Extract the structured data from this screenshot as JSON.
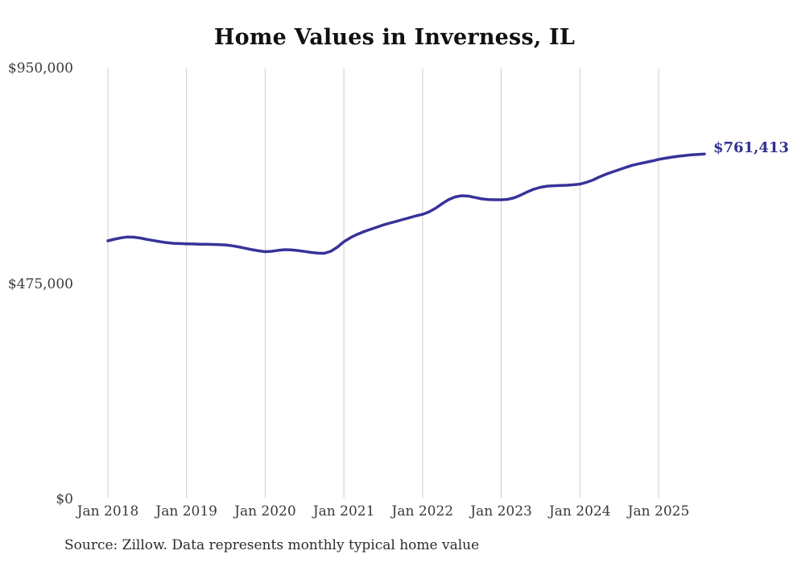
{
  "chart_data": {
    "type": "line",
    "title": "Home Values in Inverness, IL",
    "source_note": "Source: Zillow. Data represents monthly typical home value",
    "end_label": "$761,413",
    "end_value": 761413,
    "line_color": "#373399",
    "end_label_color": "#323090",
    "grid_color": "#cccccc",
    "axis_text_color": "#3a3a3a",
    "background_color": "#ffffff",
    "ylim": [
      0,
      950000
    ],
    "grid": "vertical-only",
    "legend": "none",
    "x_start": "2018-01",
    "x_end": "2025-08",
    "x_interval": "monthly",
    "y_ticks": [
      {
        "label": "$950,000",
        "value": 950000
      },
      {
        "label": "$475,000",
        "value": 475000
      },
      {
        "label": "$0",
        "value": 0
      }
    ],
    "x_ticks": [
      {
        "label": "Jan 2018",
        "month_index": 0
      },
      {
        "label": "Jan 2019",
        "month_index": 12
      },
      {
        "label": "Jan 2020",
        "month_index": 24
      },
      {
        "label": "Jan 2021",
        "month_index": 36
      },
      {
        "label": "Jan 2022",
        "month_index": 48
      },
      {
        "label": "Jan 2023",
        "month_index": 60
      },
      {
        "label": "Jan 2024",
        "month_index": 72
      },
      {
        "label": "Jan 2025",
        "month_index": 84
      }
    ],
    "series": [
      {
        "name": "Monthly typical home value",
        "values": [
          570000,
          573500,
          576500,
          578500,
          578000,
          576000,
          573000,
          570500,
          568000,
          566000,
          564500,
          564000,
          563500,
          563000,
          562500,
          562500,
          562000,
          561500,
          561000,
          559000,
          556500,
          553500,
          550500,
          548000,
          546000,
          547000,
          549000,
          550500,
          550000,
          548500,
          546500,
          544500,
          543000,
          542500,
          547000,
          556000,
          568000,
          577000,
          584000,
          590000,
          595000,
          600000,
          605000,
          609000,
          613000,
          617000,
          621000,
          625000,
          628500,
          634000,
          642000,
          652000,
          661000,
          667000,
          669500,
          668500,
          665500,
          662500,
          661000,
          660500,
          660500,
          661500,
          665000,
          671000,
          678000,
          684000,
          688000,
          690500,
          691500,
          692000,
          692500,
          693500,
          695000,
          699000,
          704000,
          711000,
          717000,
          722000,
          727000,
          732000,
          736500,
          740000,
          743000,
          746000,
          749500,
          752000,
          754500,
          756500,
          758000,
          759500,
          760500,
          761413
        ]
      }
    ]
  }
}
